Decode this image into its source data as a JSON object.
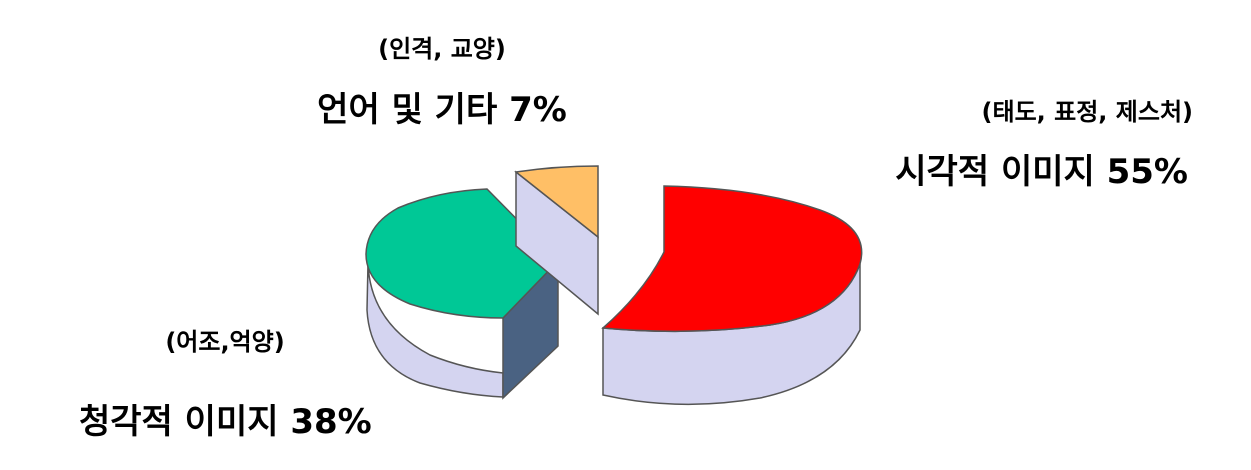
{
  "chart_data": {
    "type": "pie",
    "slices": [
      {
        "name": "시각적 이미지",
        "value": 55,
        "value_label": "55%",
        "detail": "(태도, 표정, 제스처)",
        "color": "#ff0000"
      },
      {
        "name": "청각적 이미지",
        "value": 38,
        "value_label": "38%",
        "detail": "(어조,억양)",
        "color": "#00c896"
      },
      {
        "name": "언어 및 기타",
        "value": 7,
        "value_label": "7%",
        "detail": "(인격, 교양)",
        "color": "#ffbf66"
      }
    ],
    "labels": {
      "visual_main": "시각적 이미지 55%",
      "visual_detail": "(태도, 표정, 제스처)",
      "auditory_main": "청각적 이미지 38%",
      "auditory_detail": "(어조,억양)",
      "verbal_main": "언어 및 기타 7%",
      "verbal_detail": "(인격, 교양)"
    },
    "style": "3d-exploded",
    "side_color": "#d4d4f0",
    "cut_face_color": "#4a6282"
  }
}
